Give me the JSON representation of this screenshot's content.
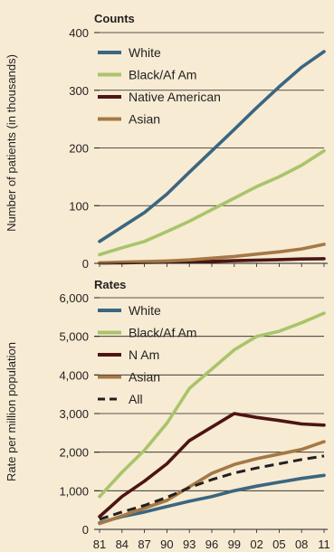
{
  "chart_data": [
    {
      "type": "line",
      "title": "Counts",
      "ylabel": "Number of patients (in thousands)",
      "ylim": [
        0,
        400
      ],
      "yticks": [
        0,
        100,
        200,
        300,
        400
      ],
      "grid": true,
      "legend_position": "top-left",
      "x": [
        1981,
        1984,
        1987,
        1990,
        1993,
        1996,
        1999,
        2002,
        2005,
        2008,
        2011
      ],
      "series": [
        {
          "name": "White",
          "color": "#3b6680",
          "values": [
            38,
            63,
            88,
            120,
            158,
            195,
            232,
            270,
            306,
            340,
            367
          ]
        },
        {
          "name": "Black/Af Am",
          "color": "#a9c46a",
          "values": [
            15,
            27,
            38,
            55,
            73,
            93,
            113,
            133,
            150,
            170,
            195
          ]
        },
        {
          "name": "Native American",
          "color": "#4d1414",
          "values": [
            0.5,
            1,
            1.5,
            2,
            3,
            3.5,
            4.5,
            5.5,
            6.5,
            7.5,
            8
          ]
        },
        {
          "name": "Asian",
          "color": "#a57845",
          "values": [
            1,
            2,
            3,
            4,
            6,
            9,
            12,
            16,
            20,
            25,
            33
          ]
        }
      ]
    },
    {
      "type": "line",
      "title": "Rates",
      "ylabel": "Rate per million population",
      "ylim": [
        0,
        6000
      ],
      "yticks": [
        0,
        1000,
        2000,
        3000,
        4000,
        5000,
        6000
      ],
      "ytick_labels": [
        "0",
        "1,000",
        "2,000",
        "3,000",
        "4,000",
        "5,000",
        "6,000"
      ],
      "grid": true,
      "legend_position": "top-left",
      "x": [
        1981,
        1984,
        1987,
        1990,
        1993,
        1996,
        1999,
        2002,
        2005,
        2008,
        2011
      ],
      "series": [
        {
          "name": "White",
          "color": "#3b6680",
          "values": [
            170,
            330,
            450,
            590,
            730,
            850,
            1000,
            1120,
            1220,
            1320,
            1400
          ]
        },
        {
          "name": "Black/Af Am",
          "color": "#a9c46a",
          "values": [
            850,
            1480,
            2050,
            2750,
            3650,
            4150,
            4650,
            5000,
            5130,
            5350,
            5600
          ]
        },
        {
          "name": "N Am",
          "color": "#4d1414",
          "values": [
            330,
            850,
            1250,
            1700,
            2300,
            2650,
            3000,
            2900,
            2820,
            2730,
            2700
          ]
        },
        {
          "name": "Asian",
          "color": "#a57845",
          "values": [
            150,
            350,
            550,
            750,
            1100,
            1450,
            1680,
            1830,
            1950,
            2070,
            2270
          ]
        },
        {
          "name": "All",
          "color": "#231f20",
          "dashed": true,
          "values": [
            260,
            450,
            620,
            830,
            1080,
            1290,
            1460,
            1590,
            1700,
            1810,
            1900
          ]
        }
      ]
    }
  ],
  "x_tick_labels": [
    "81",
    "84",
    "87",
    "90",
    "93",
    "96",
    "99",
    "02",
    "05",
    "08",
    "11"
  ]
}
